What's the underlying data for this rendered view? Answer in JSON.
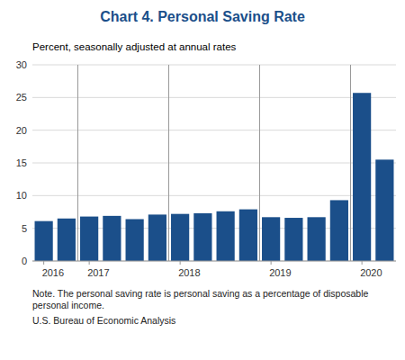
{
  "chart_data": {
    "type": "bar",
    "title": "Chart 4. Personal Saving Rate",
    "subtitle": "Percent, seasonally adjusted at annual rates",
    "note": "Note. The personal saving rate is personal saving as a percentage of disposable personal income.",
    "source": "U.S. Bureau of Economic Analysis",
    "categories": [
      "2016",
      null,
      "2017",
      null,
      null,
      null,
      "2018",
      null,
      null,
      null,
      "2019",
      null,
      null,
      null,
      "2020",
      null
    ],
    "values": [
      6.1,
      6.5,
      6.8,
      6.9,
      6.4,
      7.1,
      7.2,
      7.3,
      7.6,
      7.9,
      6.7,
      6.6,
      6.7,
      9.3,
      25.7,
      15.5
    ],
    "color": "#1B4F8A",
    "ylim": [
      0,
      30
    ],
    "yticks": [
      0,
      5,
      10,
      15,
      20,
      25,
      30
    ],
    "grid": true
  }
}
